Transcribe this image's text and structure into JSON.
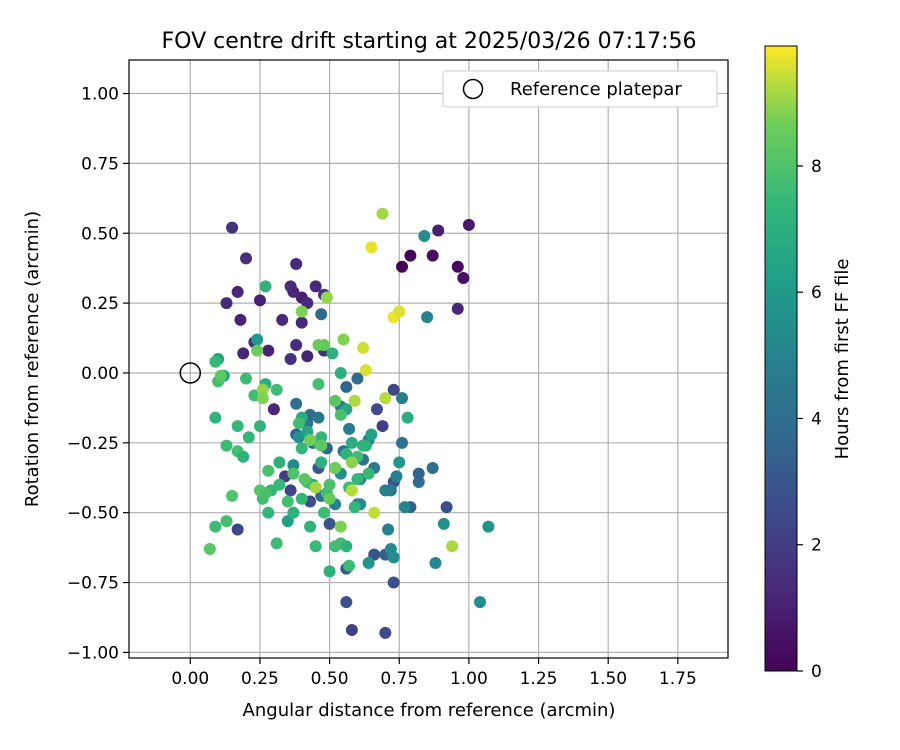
{
  "chart_data": {
    "type": "scatter",
    "title": "FOV centre drift starting at 2025/03/26 07:17:56",
    "xlabel": "Angular distance from reference (arcmin)",
    "ylabel": "Rotation from reference (arcmin)",
    "xlim": [
      -0.22,
      1.93
    ],
    "ylim": [
      -1.02,
      1.12
    ],
    "xticks": [
      "0.00",
      "0.25",
      "0.50",
      "0.75",
      "1.00",
      "1.25",
      "1.50",
      "1.75"
    ],
    "yticks": [
      "1.00",
      "0.75",
      "0.50",
      "0.25",
      "0.00",
      "−0.25",
      "−0.50",
      "−0.75",
      "−1.00"
    ],
    "grid": true,
    "legend": {
      "position": "upper-right",
      "entries": [
        "Reference platepar"
      ]
    },
    "reference_point": {
      "x": 0.0,
      "y": 0.0,
      "marker": "hollow-circle"
    },
    "colorbar": {
      "label": "Hours from first FF file",
      "range": [
        0,
        9.9
      ],
      "ticks": [
        "0",
        "2",
        "4",
        "6",
        "8"
      ],
      "colormap": "viridis"
    },
    "series": [
      {
        "points": [
          [
            0.76,
            0.38,
            0.1
          ],
          [
            0.79,
            0.42,
            0.2
          ],
          [
            0.87,
            0.42,
            0.4
          ],
          [
            0.96,
            0.38,
            0.3
          ],
          [
            0.98,
            0.34,
            0.5
          ],
          [
            1.0,
            0.53,
            0.8
          ],
          [
            0.89,
            0.51,
            1.0
          ],
          [
            0.96,
            0.23,
            1.2
          ],
          [
            0.15,
            0.52,
            1.6
          ],
          [
            0.2,
            0.41,
            1.5
          ],
          [
            0.13,
            0.25,
            1.4
          ],
          [
            0.17,
            0.29,
            1.2
          ],
          [
            0.18,
            0.19,
            1.1
          ],
          [
            0.19,
            0.07,
            1.2
          ],
          [
            0.23,
            0.11,
            1.3
          ],
          [
            0.25,
            0.26,
            1.0
          ],
          [
            0.28,
            0.08,
            1.1
          ],
          [
            0.3,
            -0.13,
            1.2
          ],
          [
            0.33,
            0.19,
            1.3
          ],
          [
            0.36,
            0.31,
            1.4
          ],
          [
            0.38,
            0.39,
            1.3
          ],
          [
            0.37,
            0.29,
            1.2
          ],
          [
            0.4,
            0.27,
            1.0
          ],
          [
            0.42,
            0.25,
            1.4
          ],
          [
            0.4,
            0.18,
            1.2
          ],
          [
            0.36,
            0.05,
            1.6
          ],
          [
            0.38,
            0.1,
            1.4
          ],
          [
            0.42,
            0.06,
            1.1
          ],
          [
            0.45,
            0.31,
            1.3
          ],
          [
            0.48,
            0.28,
            1.6
          ],
          [
            0.48,
            0.08,
            1.5
          ],
          [
            0.47,
            0.21,
            3.8
          ],
          [
            0.56,
            -0.82,
            2.8
          ],
          [
            0.58,
            -0.92,
            2.2
          ],
          [
            0.7,
            -0.93,
            2.5
          ],
          [
            0.73,
            -0.75,
            2.8
          ],
          [
            0.17,
            -0.56,
            2.4
          ],
          [
            0.34,
            -0.37,
            2.0
          ],
          [
            0.36,
            -0.42,
            2.3
          ],
          [
            0.43,
            -0.46,
            2.6
          ],
          [
            0.46,
            -0.34,
            3.0
          ],
          [
            0.5,
            -0.54,
            2.8
          ],
          [
            0.56,
            -0.05,
            3.6
          ],
          [
            0.6,
            -0.02,
            3.9
          ],
          [
            0.67,
            -0.13,
            2.5
          ],
          [
            0.69,
            -0.19,
            2.1
          ],
          [
            0.73,
            -0.06,
            2.4
          ],
          [
            0.73,
            -0.39,
            3.0
          ],
          [
            0.79,
            -0.48,
            3.4
          ],
          [
            0.82,
            -0.39,
            3.8
          ],
          [
            0.82,
            -0.36,
            3.6
          ],
          [
            0.87,
            -0.34,
            3.9
          ],
          [
            0.92,
            -0.48,
            2.7
          ],
          [
            0.7,
            -0.65,
            3.4
          ],
          [
            0.66,
            -0.65,
            2.9
          ],
          [
            0.56,
            -0.7,
            3.2
          ],
          [
            0.38,
            -0.11,
            4.0
          ],
          [
            0.38,
            -0.22,
            3.6
          ],
          [
            0.42,
            -0.18,
            4.2
          ],
          [
            0.43,
            -0.15,
            3.8
          ],
          [
            0.46,
            -0.16,
            4.4
          ],
          [
            0.44,
            -0.25,
            4.0
          ],
          [
            0.49,
            -0.27,
            3.6
          ],
          [
            0.47,
            -0.44,
            3.9
          ],
          [
            0.54,
            -0.12,
            4.4
          ],
          [
            0.55,
            -0.28,
            4.1
          ],
          [
            0.57,
            -0.2,
            4.6
          ],
          [
            0.6,
            -0.47,
            4.2
          ],
          [
            0.61,
            -0.38,
            4.7
          ],
          [
            0.62,
            -0.31,
            4.3
          ],
          [
            0.64,
            -0.24,
            4.8
          ],
          [
            0.66,
            -0.34,
            4.5
          ],
          [
            0.7,
            -0.42,
            5.0
          ],
          [
            0.72,
            -0.42,
            4.6
          ],
          [
            0.74,
            -0.37,
            4.9
          ],
          [
            0.76,
            -0.25,
            4.2
          ],
          [
            0.76,
            -0.09,
            4.8
          ],
          [
            0.77,
            -0.48,
            5.1
          ],
          [
            0.71,
            -0.56,
            4.9
          ],
          [
            0.72,
            -0.63,
            5.3
          ],
          [
            0.73,
            -0.66,
            5.4
          ],
          [
            0.85,
            0.2,
            5.0
          ],
          [
            0.84,
            0.49,
            5.5
          ],
          [
            0.88,
            -0.68,
            5.2
          ],
          [
            0.91,
            -0.54,
            5.6
          ],
          [
            1.04,
            -0.82,
            5.4
          ],
          [
            1.07,
            -0.55,
            5.8
          ],
          [
            0.37,
            -0.33,
            5.4
          ],
          [
            0.39,
            -0.23,
            5.6
          ],
          [
            0.52,
            -0.47,
            5.0
          ],
          [
            0.54,
            -0.36,
            5.5
          ],
          [
            0.61,
            -0.47,
            5.3
          ],
          [
            0.64,
            -0.68,
            5.8
          ],
          [
            0.75,
            -0.32,
            5.9
          ],
          [
            0.24,
            0.12,
            6.0
          ],
          [
            0.1,
            0.05,
            6.4
          ],
          [
            0.12,
            -0.01,
            6.2
          ],
          [
            0.27,
            0.31,
            7.2
          ],
          [
            0.4,
            -0.16,
            6.8
          ],
          [
            0.42,
            -0.21,
            6.6
          ],
          [
            0.35,
            -0.53,
            6.3
          ],
          [
            0.44,
            -0.4,
            6.4
          ],
          [
            0.56,
            -0.13,
            6.6
          ],
          [
            0.58,
            -0.25,
            6.9
          ],
          [
            0.63,
            -0.26,
            7.0
          ],
          [
            0.65,
            -0.22,
            6.5
          ],
          [
            0.78,
            -0.16,
            7.0
          ],
          [
            0.54,
            0.0,
            7.0
          ],
          [
            0.57,
            -0.41,
            7.5
          ],
          [
            0.56,
            -0.29,
            7.2
          ],
          [
            0.6,
            -0.38,
            7.4
          ],
          [
            0.51,
            0.07,
            7.1
          ],
          [
            0.09,
            0.04,
            7.5
          ],
          [
            0.1,
            -0.03,
            7.8
          ],
          [
            0.09,
            -0.16,
            7.3
          ],
          [
            0.13,
            -0.26,
            7.6
          ],
          [
            0.17,
            -0.19,
            7.4
          ],
          [
            0.17,
            -0.28,
            7.8
          ],
          [
            0.19,
            -0.3,
            7.1
          ],
          [
            0.2,
            -0.02,
            7.6
          ],
          [
            0.21,
            -0.23,
            7.4
          ],
          [
            0.23,
            -0.08,
            7.7
          ],
          [
            0.25,
            -0.19,
            7.2
          ],
          [
            0.27,
            -0.04,
            7.0
          ],
          [
            0.28,
            -0.35,
            7.9
          ],
          [
            0.29,
            -0.42,
            7.3
          ],
          [
            0.31,
            -0.06,
            7.6
          ],
          [
            0.32,
            -0.32,
            7.1
          ],
          [
            0.32,
            -0.4,
            7.5
          ],
          [
            0.26,
            -0.45,
            7.7
          ],
          [
            0.28,
            -0.5,
            7.3
          ],
          [
            0.35,
            -0.46,
            7.8
          ],
          [
            0.37,
            -0.5,
            7.1
          ],
          [
            0.4,
            -0.45,
            7.4
          ],
          [
            0.42,
            -0.39,
            7.6
          ],
          [
            0.43,
            -0.55,
            7.2
          ],
          [
            0.45,
            -0.62,
            7.5
          ],
          [
            0.39,
            -0.18,
            7.7
          ],
          [
            0.4,
            -0.27,
            7.3
          ],
          [
            0.46,
            -0.04,
            7.8
          ],
          [
            0.46,
            -0.25,
            7.5
          ],
          [
            0.47,
            -0.32,
            7.1
          ],
          [
            0.49,
            -0.43,
            7.6
          ],
          [
            0.5,
            -0.71,
            7.2
          ],
          [
            0.5,
            -0.4,
            7.9
          ],
          [
            0.52,
            -0.34,
            7.4
          ],
          [
            0.54,
            -0.61,
            7.8
          ],
          [
            0.56,
            -0.62,
            7.2
          ],
          [
            0.57,
            -0.69,
            7.6
          ],
          [
            0.59,
            -0.48,
            7.4
          ],
          [
            0.6,
            -0.3,
            7.7
          ],
          [
            0.62,
            -0.26,
            7.2
          ],
          [
            0.64,
            -0.36,
            7.5
          ],
          [
            0.54,
            -0.15,
            7.9
          ],
          [
            0.47,
            -0.23,
            7.3
          ],
          [
            0.48,
            -0.5,
            7.6
          ],
          [
            0.52,
            -0.62,
            7.7
          ],
          [
            0.15,
            -0.44,
            8.0
          ],
          [
            0.13,
            -0.53,
            7.8
          ],
          [
            0.09,
            -0.55,
            7.6
          ],
          [
            0.07,
            -0.63,
            8.2
          ],
          [
            0.11,
            -0.01,
            8.3
          ],
          [
            0.31,
            -0.61,
            7.6
          ],
          [
            0.25,
            -0.42,
            8.1
          ],
          [
            0.27,
            -0.43,
            7.9
          ],
          [
            0.48,
            0.1,
            8.4
          ],
          [
            0.52,
            -0.1,
            8.2
          ],
          [
            0.55,
            0.12,
            8.8
          ],
          [
            0.52,
            -0.34,
            8.6
          ],
          [
            0.54,
            -0.55,
            8.8
          ],
          [
            0.58,
            -0.32,
            8.9
          ],
          [
            0.59,
            -0.1,
            9.2
          ],
          [
            0.62,
            0.09,
            9.5
          ],
          [
            0.63,
            0.01,
            9.6
          ],
          [
            0.66,
            -0.5,
            9.4
          ],
          [
            0.7,
            -0.09,
            9.3
          ],
          [
            0.69,
            0.57,
            9.1
          ],
          [
            0.65,
            0.45,
            9.7
          ],
          [
            0.73,
            0.2,
            9.8
          ],
          [
            0.75,
            0.22,
            9.6
          ],
          [
            0.49,
            0.27,
            9.0
          ],
          [
            0.4,
            0.22,
            8.8
          ],
          [
            0.45,
            -0.41,
            9.1
          ],
          [
            0.43,
            -0.24,
            8.7
          ],
          [
            0.58,
            -0.42,
            9.3
          ],
          [
            0.94,
            -0.62,
            9.2
          ],
          [
            0.24,
            0.08,
            8.6
          ],
          [
            0.26,
            -0.06,
            9.0
          ],
          [
            0.26,
            -0.09,
            8.8
          ],
          [
            0.46,
            0.1,
            8.5
          ],
          [
            0.47,
            -0.26,
            8.3
          ],
          [
            0.5,
            -0.45,
            8.5
          ],
          [
            0.37,
            -0.36,
            8.0
          ],
          [
            0.41,
            -0.38,
            8.2
          ]
        ]
      }
    ]
  }
}
